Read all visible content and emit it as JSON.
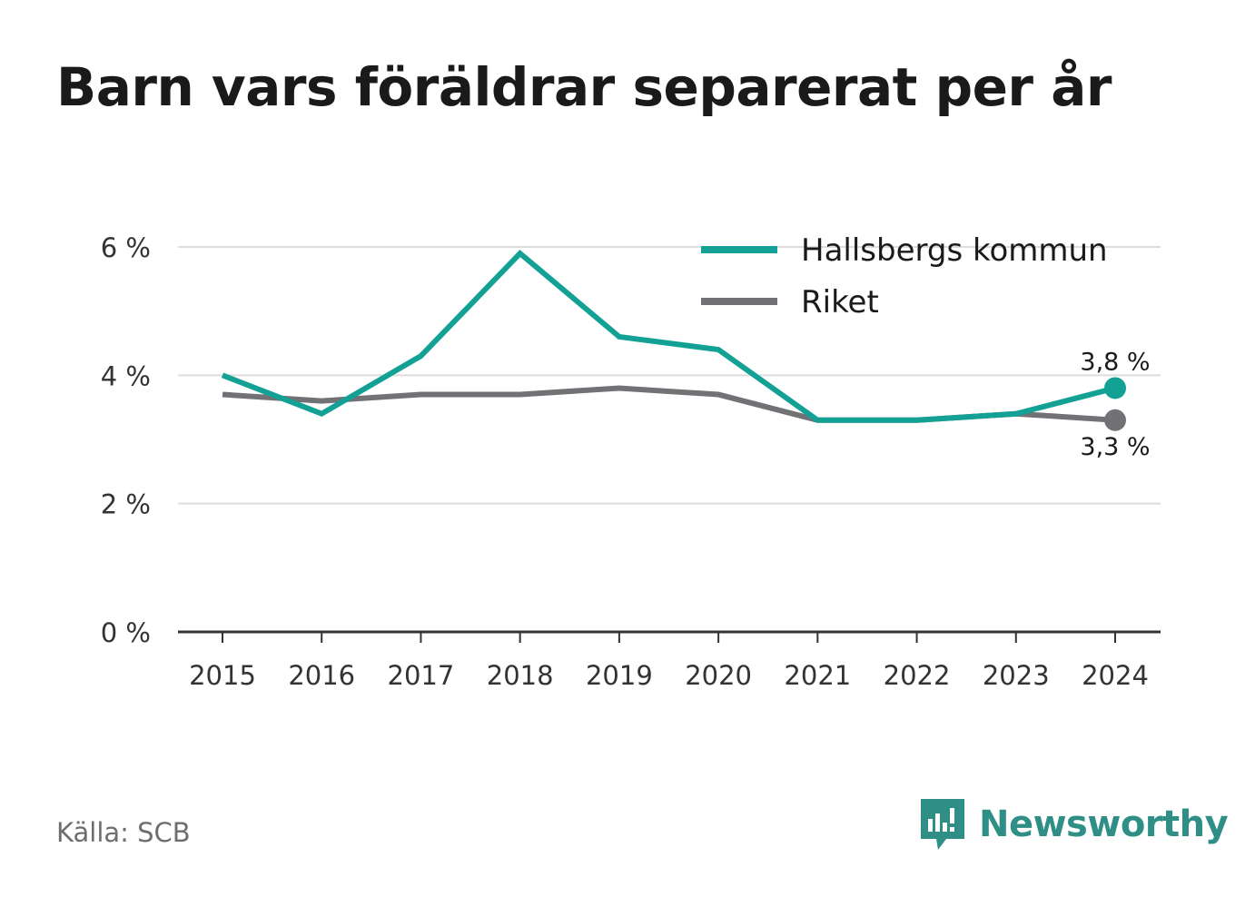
{
  "title": "Barn vars föräldrar separerat per år",
  "source": "Källa: SCB",
  "brand": {
    "name": "Newsworthy",
    "icon": "newsworthy-logo-icon",
    "color": "#2f8f86"
  },
  "chart_data": {
    "type": "line",
    "title": "Barn vars föräldrar separerat per år",
    "x": [
      "2015",
      "2016",
      "2017",
      "2018",
      "2019",
      "2020",
      "2021",
      "2022",
      "2023",
      "2024"
    ],
    "ylim": [
      0,
      6
    ],
    "yticks": [
      0,
      2,
      4,
      6
    ],
    "ytick_labels": [
      "0 %",
      "2 %",
      "4 %",
      "6 %"
    ],
    "grid": true,
    "legend_position": "top-right",
    "series": [
      {
        "name": "Hallsbergs kommun",
        "color": "#13a196",
        "values": [
          4.0,
          3.4,
          4.3,
          5.9,
          4.6,
          4.4,
          3.3,
          3.3,
          3.4,
          3.8
        ],
        "end_label": "3,8 %"
      },
      {
        "name": "Riket",
        "color": "#717176",
        "values": [
          3.7,
          3.6,
          3.7,
          3.7,
          3.8,
          3.7,
          3.3,
          3.3,
          3.4,
          3.3
        ],
        "end_label": "3,3 %"
      }
    ]
  }
}
